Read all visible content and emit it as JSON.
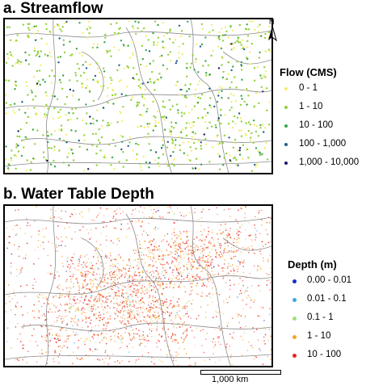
{
  "panel_a": {
    "title": "a. Streamflow",
    "north_label": "N",
    "legend": {
      "title": "Flow (CMS)",
      "items": [
        {
          "label": "0 - 1",
          "color": "#f2ef6a"
        },
        {
          "label": "1 - 10",
          "color": "#8fd13a"
        },
        {
          "label": "10 - 100",
          "color": "#3aa64c"
        },
        {
          "label": "100 - 1,000",
          "color": "#1f5f8b"
        },
        {
          "label": "1,000 - 10,000",
          "color": "#1a1a6b"
        }
      ]
    }
  },
  "panel_b": {
    "title": "b. Water Table Depth",
    "legend": {
      "title": "Depth (m)",
      "items": [
        {
          "label": "0.00 - 0.01",
          "color": "#1530c8"
        },
        {
          "label": "0.01 - 0.1",
          "color": "#3fa6e8"
        },
        {
          "label": "0.1 - 1",
          "color": "#9fe07a"
        },
        {
          "label": "1 - 10",
          "color": "#f5a623"
        },
        {
          "label": "10 - 100",
          "color": "#e8231c"
        }
      ]
    }
  },
  "scalebar": {
    "label": "1,000 km"
  }
}
